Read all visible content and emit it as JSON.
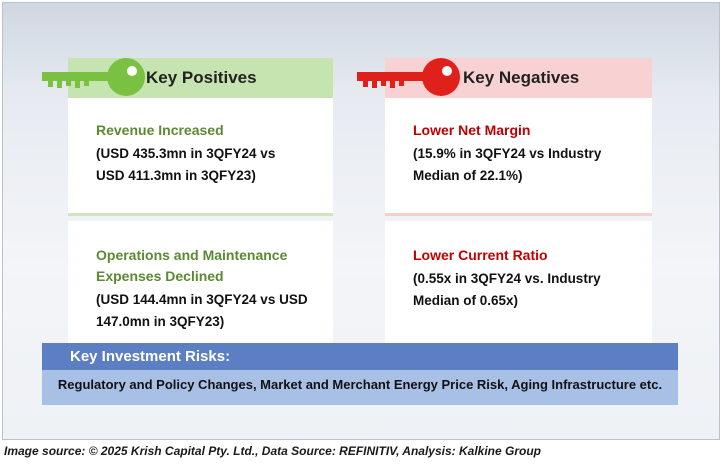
{
  "positives": {
    "header": "Key Positives",
    "items": [
      {
        "title": "Revenue Increased",
        "detail_line1": "(USD 435.3mn in 3QFY24 vs",
        "detail_line2": "USD 411.3mn in 3QFY23)"
      },
      {
        "title_line1": "Operations and Maintenance",
        "title_line2": "Expenses Declined",
        "detail_line1": "(USD 144.4mn in 3QFY24 vs USD",
        "detail_line2": "147.0mn in 3QFY23)"
      }
    ]
  },
  "negatives": {
    "header": "Key Negatives",
    "items": [
      {
        "title": "Lower Net Margin",
        "detail_line1": "(15.9% in 3QFY24 vs Industry",
        "detail_line2": "Median of 22.1%)"
      },
      {
        "title": "Lower Current Ratio",
        "detail_line1": "(0.55x in 3QFY24 vs. Industry",
        "detail_line2": "Median of 0.65x)"
      }
    ]
  },
  "risks": {
    "header": "Key Investment Risks:",
    "text": "Regulatory and Policy Changes, Market and Merchant Energy Price Risk, Aging Infrastructure etc."
  },
  "footer": "Image source: © 2025 Krish Capital Pty. Ltd., Data Source: REFINITIV, Analysis: Kalkine Group",
  "colors": {
    "positive_key": "#7ac142",
    "negative_key": "#e0201b",
    "risk_header": "#5b7fc2",
    "risk_body": "#a8c0e6"
  },
  "icons": {
    "positive": "key-icon",
    "negative": "key-icon"
  }
}
